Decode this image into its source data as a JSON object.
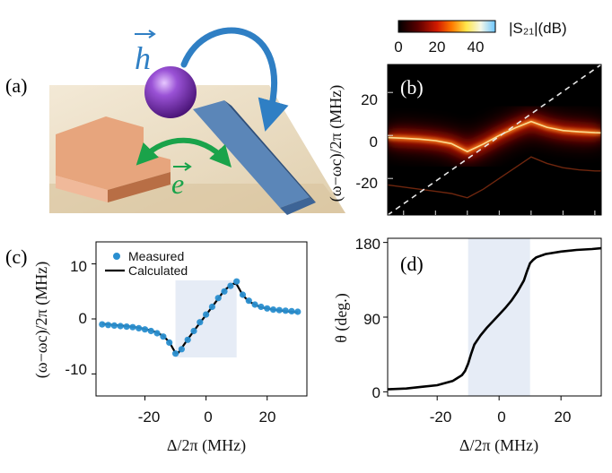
{
  "figure": {
    "panel_a": {
      "label": "(a)",
      "h_symbol": "h",
      "e_symbol": "e",
      "colors": {
        "blue_arrow": "#2f7fc4",
        "green_arrow": "#1aa34a",
        "sphere": "#7d3bb8",
        "copper": "#d9956a",
        "strip": "#5b86b8",
        "base": "#eadcc2"
      }
    },
    "panel_b": {
      "label": "(b)",
      "colorbar_label": "|S₂₁|(dB)",
      "colorbar_ticks": [
        "0",
        "20",
        "40"
      ],
      "ylabel": "(ω−ωc)/2π  (MHz)",
      "yticks": [
        "20",
        "0",
        "-20"
      ]
    },
    "panel_c": {
      "label": "(c)",
      "ylabel": "(ω−ωc)/2π  (MHz)",
      "xlabel": "Δ/2π  (MHz)",
      "xticks": [
        "-20",
        "0",
        "20"
      ],
      "yticks": [
        "10",
        "0",
        "-10"
      ],
      "legend": {
        "measured": "Measured",
        "calculated": "Calculated"
      }
    },
    "panel_d": {
      "label": "(d)",
      "ylabel": "θ  (deg.)",
      "xlabel": "Δ/2π  (MHz)",
      "xticks": [
        "-20",
        "0",
        "20"
      ],
      "yticks": [
        "180",
        "90",
        "0"
      ]
    }
  },
  "chart_data": [
    {
      "type": "heatmap",
      "panel": "b",
      "title": "",
      "xlabel": "",
      "ylabel": "(ω−ωc)/2π (MHz)",
      "xlim": [
        -35,
        32
      ],
      "ylim": [
        -37,
        33
      ],
      "colorbar": {
        "label": "|S21|(dB)",
        "range": [
          0,
          50
        ],
        "ticks": [
          0,
          20,
          40
        ]
      },
      "diagonal_line": {
        "x": [
          -35,
          32
        ],
        "y": [
          -37,
          33
        ],
        "style": "dashed"
      },
      "branch_center_x": [
        -35,
        -30,
        -25,
        -20,
        -15,
        -10,
        -5,
        0,
        5,
        10,
        15,
        20,
        25,
        30,
        32
      ],
      "branch_center_y": [
        -1.0,
        -1.3,
        -1.7,
        -2.4,
        -3.8,
        -7.5,
        -4.0,
        0.0,
        3.5,
        6.5,
        3.8,
        2.3,
        1.7,
        1.3,
        1.2
      ],
      "faint_branch_y": [
        -23,
        -24,
        -25,
        -26,
        -27,
        -29,
        -25,
        -20,
        -15,
        -10,
        -13,
        -15,
        -16,
        -16.5,
        -16.5
      ]
    },
    {
      "type": "line",
      "panel": "c",
      "xlabel": "Δ/2π (MHz)",
      "ylabel": "(ω−ωc)/2π (MHz)",
      "xlim": [
        -36,
        33
      ],
      "ylim": [
        -14,
        14
      ],
      "shaded_x": [
        -10,
        10
      ],
      "shaded_y": [
        -7,
        7
      ],
      "series": [
        {
          "name": "Measured",
          "style": "dots",
          "x": [
            -34,
            -32,
            -30,
            -28,
            -26,
            -24,
            -22,
            -20,
            -18,
            -16,
            -14,
            -12,
            -10,
            -8,
            -6,
            -4,
            -2,
            0,
            2,
            4,
            6,
            8,
            10,
            12,
            14,
            16,
            18,
            20,
            22,
            24,
            26,
            28,
            30
          ],
          "y": [
            -1.0,
            -1.1,
            -1.2,
            -1.3,
            -1.4,
            -1.5,
            -1.7,
            -1.9,
            -2.2,
            -2.6,
            -3.2,
            -4.3,
            -6.3,
            -5.5,
            -3.8,
            -2.2,
            -0.6,
            0.8,
            2.2,
            3.8,
            5.0,
            6.0,
            6.8,
            4.4,
            3.3,
            2.6,
            2.2,
            1.9,
            1.7,
            1.6,
            1.5,
            1.4,
            1.3
          ]
        },
        {
          "name": "Calculated",
          "style": "line",
          "x": [
            -34,
            -30,
            -26,
            -22,
            -18,
            -16,
            -14,
            -12,
            -11,
            -10,
            -9,
            -8,
            -6,
            -4,
            -2,
            0,
            2,
            4,
            6,
            8,
            9,
            10,
            11,
            12,
            14,
            16,
            18,
            22,
            26,
            30
          ],
          "y": [
            -0.9,
            -1.1,
            -1.3,
            -1.6,
            -2.1,
            -2.5,
            -3.1,
            -4.2,
            -5.2,
            -6.2,
            -6.1,
            -5.3,
            -3.7,
            -2.2,
            -0.7,
            0.7,
            2.2,
            3.7,
            5.2,
            6.1,
            6.4,
            6.3,
            5.3,
            4.3,
            3.2,
            2.6,
            2.1,
            1.7,
            1.4,
            1.2
          ]
        }
      ]
    },
    {
      "type": "line",
      "panel": "d",
      "xlabel": "Δ/2π (MHz)",
      "ylabel": "θ (deg.)",
      "xlim": [
        -36,
        33
      ],
      "ylim": [
        -5,
        185
      ],
      "shaded_x": [
        -10,
        10
      ],
      "series": [
        {
          "name": "theta",
          "x": [
            -36,
            -30,
            -25,
            -20,
            -15,
            -12,
            -11,
            -10,
            -9,
            -8,
            -6,
            -4,
            -2,
            0,
            2,
            4,
            6,
            8,
            9,
            10,
            11,
            12,
            15,
            20,
            25,
            30,
            33
          ],
          "y": [
            3,
            4,
            6,
            8,
            13,
            20,
            25,
            34,
            46,
            57,
            68,
            77,
            85,
            93,
            101,
            110,
            121,
            134,
            145,
            155,
            159,
            162,
            166,
            169,
            171,
            172,
            173
          ]
        }
      ]
    }
  ]
}
